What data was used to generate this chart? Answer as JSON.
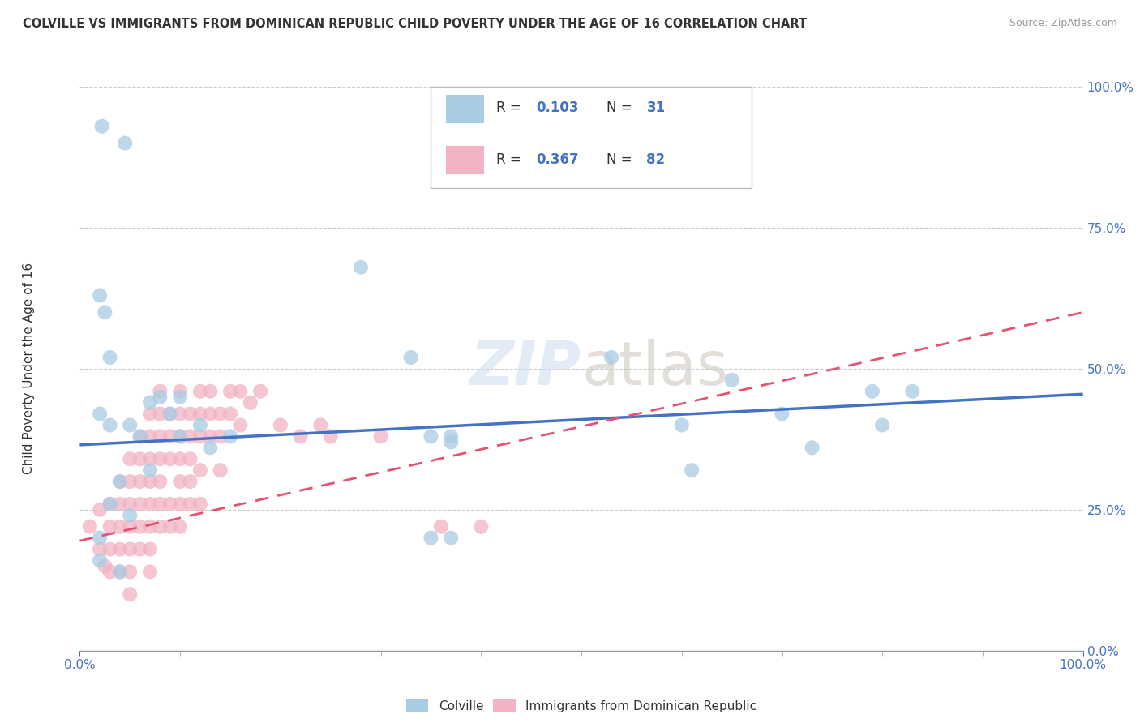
{
  "title": "COLVILLE VS IMMIGRANTS FROM DOMINICAN REPUBLIC CHILD POVERTY UNDER THE AGE OF 16 CORRELATION CHART",
  "source": "Source: ZipAtlas.com",
  "ylabel": "Child Poverty Under the Age of 16",
  "xlim": [
    0,
    1
  ],
  "ylim": [
    0,
    1
  ],
  "y_tick_vals": [
    0.0,
    0.25,
    0.5,
    0.75,
    1.0
  ],
  "y_tick_labels": [
    "0.0%",
    "25.0%",
    "50.0%",
    "75.0%",
    "100.0%"
  ],
  "color_blue": "#a8cce4",
  "color_pink": "#f2b3c4",
  "color_blue_line": "#4472c4",
  "color_pink_line": "#e85070",
  "legend_label1": "Colville",
  "legend_label2": "Immigrants from Dominican Republic",
  "background_color": "#ffffff",
  "blue_dots": [
    [
      0.022,
      0.93
    ],
    [
      0.045,
      0.9
    ],
    [
      0.02,
      0.63
    ],
    [
      0.025,
      0.6
    ],
    [
      0.03,
      0.52
    ],
    [
      0.07,
      0.44
    ],
    [
      0.02,
      0.42
    ],
    [
      0.03,
      0.4
    ],
    [
      0.05,
      0.4
    ],
    [
      0.06,
      0.38
    ],
    [
      0.08,
      0.45
    ],
    [
      0.09,
      0.42
    ],
    [
      0.1,
      0.45
    ],
    [
      0.1,
      0.38
    ],
    [
      0.12,
      0.4
    ],
    [
      0.13,
      0.36
    ],
    [
      0.15,
      0.38
    ],
    [
      0.07,
      0.32
    ],
    [
      0.04,
      0.3
    ],
    [
      0.03,
      0.26
    ],
    [
      0.05,
      0.24
    ],
    [
      0.02,
      0.2
    ],
    [
      0.02,
      0.16
    ],
    [
      0.04,
      0.14
    ],
    [
      0.28,
      0.68
    ],
    [
      0.33,
      0.52
    ],
    [
      0.35,
      0.38
    ],
    [
      0.37,
      0.38
    ],
    [
      0.53,
      0.52
    ],
    [
      0.6,
      0.4
    ],
    [
      0.61,
      0.32
    ],
    [
      0.65,
      0.48
    ],
    [
      0.7,
      0.42
    ],
    [
      0.73,
      0.36
    ],
    [
      0.79,
      0.46
    ],
    [
      0.8,
      0.4
    ],
    [
      0.83,
      0.46
    ],
    [
      0.37,
      0.37
    ],
    [
      0.35,
      0.2
    ],
    [
      0.37,
      0.2
    ]
  ],
  "pink_dots": [
    [
      0.01,
      0.22
    ],
    [
      0.02,
      0.25
    ],
    [
      0.02,
      0.18
    ],
    [
      0.025,
      0.15
    ],
    [
      0.03,
      0.26
    ],
    [
      0.03,
      0.22
    ],
    [
      0.03,
      0.18
    ],
    [
      0.03,
      0.14
    ],
    [
      0.04,
      0.3
    ],
    [
      0.04,
      0.26
    ],
    [
      0.04,
      0.22
    ],
    [
      0.04,
      0.18
    ],
    [
      0.04,
      0.14
    ],
    [
      0.05,
      0.34
    ],
    [
      0.05,
      0.3
    ],
    [
      0.05,
      0.26
    ],
    [
      0.05,
      0.22
    ],
    [
      0.05,
      0.18
    ],
    [
      0.05,
      0.14
    ],
    [
      0.05,
      0.1
    ],
    [
      0.06,
      0.38
    ],
    [
      0.06,
      0.34
    ],
    [
      0.06,
      0.3
    ],
    [
      0.06,
      0.26
    ],
    [
      0.06,
      0.22
    ],
    [
      0.06,
      0.18
    ],
    [
      0.07,
      0.42
    ],
    [
      0.07,
      0.38
    ],
    [
      0.07,
      0.34
    ],
    [
      0.07,
      0.3
    ],
    [
      0.07,
      0.26
    ],
    [
      0.07,
      0.22
    ],
    [
      0.07,
      0.18
    ],
    [
      0.07,
      0.14
    ],
    [
      0.08,
      0.46
    ],
    [
      0.08,
      0.42
    ],
    [
      0.08,
      0.38
    ],
    [
      0.08,
      0.34
    ],
    [
      0.08,
      0.3
    ],
    [
      0.08,
      0.26
    ],
    [
      0.08,
      0.22
    ],
    [
      0.09,
      0.42
    ],
    [
      0.09,
      0.38
    ],
    [
      0.09,
      0.34
    ],
    [
      0.09,
      0.26
    ],
    [
      0.09,
      0.22
    ],
    [
      0.1,
      0.46
    ],
    [
      0.1,
      0.42
    ],
    [
      0.1,
      0.38
    ],
    [
      0.1,
      0.34
    ],
    [
      0.1,
      0.3
    ],
    [
      0.1,
      0.26
    ],
    [
      0.1,
      0.22
    ],
    [
      0.11,
      0.42
    ],
    [
      0.11,
      0.38
    ],
    [
      0.11,
      0.34
    ],
    [
      0.11,
      0.3
    ],
    [
      0.11,
      0.26
    ],
    [
      0.12,
      0.46
    ],
    [
      0.12,
      0.42
    ],
    [
      0.12,
      0.38
    ],
    [
      0.12,
      0.32
    ],
    [
      0.12,
      0.26
    ],
    [
      0.13,
      0.46
    ],
    [
      0.13,
      0.42
    ],
    [
      0.13,
      0.38
    ],
    [
      0.14,
      0.42
    ],
    [
      0.14,
      0.38
    ],
    [
      0.14,
      0.32
    ],
    [
      0.15,
      0.46
    ],
    [
      0.15,
      0.42
    ],
    [
      0.16,
      0.46
    ],
    [
      0.16,
      0.4
    ],
    [
      0.17,
      0.44
    ],
    [
      0.18,
      0.46
    ],
    [
      0.2,
      0.4
    ],
    [
      0.22,
      0.38
    ],
    [
      0.24,
      0.4
    ],
    [
      0.25,
      0.38
    ],
    [
      0.3,
      0.38
    ],
    [
      0.36,
      0.22
    ],
    [
      0.4,
      0.22
    ]
  ],
  "blue_line_x": [
    0.0,
    1.0
  ],
  "blue_line_y": [
    0.365,
    0.455
  ],
  "pink_line_x": [
    0.0,
    1.0
  ],
  "pink_line_y": [
    0.195,
    0.6
  ],
  "pink_line_dashed": true
}
